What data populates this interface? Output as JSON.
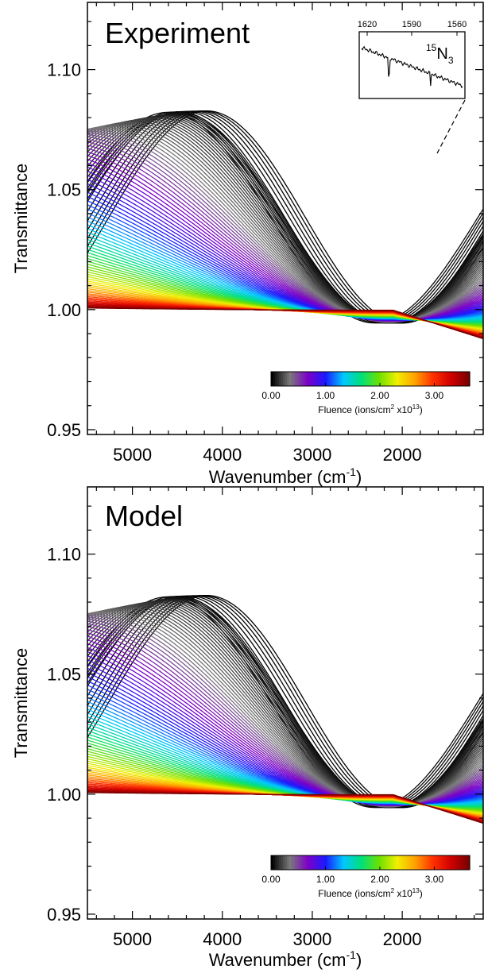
{
  "chart_data": [
    {
      "type": "line",
      "title": "Experiment",
      "xlabel": "Wavenumber (cm",
      "xlabel_sup": "-1",
      "xlabel_end": ")",
      "ylabel": "Transmittance",
      "xlim": [
        5500,
        1100
      ],
      "ylim": [
        0.948,
        1.128
      ],
      "xticks": [
        5000,
        4000,
        3000,
        2000
      ],
      "xtick_labels": [
        "5000",
        "4000",
        "3000",
        "2000"
      ],
      "yticks": [
        0.95,
        1.0,
        1.05,
        1.1
      ],
      "ytick_labels": [
        "0.95",
        "1.00",
        "1.05",
        "1.10"
      ],
      "colorbar": {
        "label": "Fluence (ions/cm",
        "label_sup1": "2",
        "label_mid": " x10",
        "label_sup2": "13",
        "label_end": ")",
        "range": [
          0.0,
          3.65
        ],
        "ticks": [
          0.0,
          1.0,
          2.0,
          3.0
        ],
        "tick_labels": [
          "0.00",
          "1.00",
          "2.00",
          "3.00"
        ],
        "colors": [
          "#000000",
          "#7a7a7a",
          "#7d00c8",
          "#1a1aff",
          "#00c8ff",
          "#00e07a",
          "#6ee000",
          "#f0f000",
          "#ffa000",
          "#ff3000",
          "#d00000",
          "#7a0000"
        ]
      },
      "inset": {
        "label_sup": "15",
        "label": "N",
        "label_sub": "3",
        "xticks": [
          "1620",
          "1590",
          "1560"
        ]
      },
      "series_description": {
        "n_curves": 96,
        "fluence_max": 3.65,
        "amplitude_max": 0.093,
        "period_at_zero_fluence_cm-1": 4360,
        "period_at_max_fluence_cm-1": 20000,
        "phase_anchor_cm-1": 2150,
        "baseline_start": 1.0,
        "baseline_end_slope_per_1000": -0.012
      }
    },
    {
      "type": "line",
      "title": "Model",
      "xlabel": "Wavenumber (cm",
      "xlabel_sup": "-1",
      "xlabel_end": ")",
      "ylabel": "Transmittance",
      "xlim": [
        5500,
        1100
      ],
      "ylim": [
        0.948,
        1.128
      ],
      "xticks": [
        5000,
        4000,
        3000,
        2000
      ],
      "xtick_labels": [
        "5000",
        "4000",
        "3000",
        "2000"
      ],
      "yticks": [
        0.95,
        1.0,
        1.05,
        1.1
      ],
      "ytick_labels": [
        "0.95",
        "1.00",
        "1.05",
        "1.10"
      ],
      "colorbar": {
        "label": "Fluence (ions/cm",
        "label_sup1": "2",
        "label_mid": " x10",
        "label_sup2": "13",
        "label_end": ")",
        "range": [
          0.0,
          3.65
        ],
        "ticks": [
          0.0,
          1.0,
          2.0,
          3.0
        ],
        "tick_labels": [
          "0.00",
          "1.00",
          "2.00",
          "3.00"
        ],
        "colors": [
          "#000000",
          "#7a7a7a",
          "#7d00c8",
          "#1a1aff",
          "#00c8ff",
          "#00e07a",
          "#6ee000",
          "#f0f000",
          "#ffa000",
          "#ff3000",
          "#d00000",
          "#7a0000"
        ]
      },
      "series_description": {
        "n_curves": 96,
        "fluence_max": 3.65,
        "amplitude_max": 0.093,
        "period_at_zero_fluence_cm-1": 4360,
        "period_at_max_fluence_cm-1": 20000,
        "phase_anchor_cm-1": 2150,
        "baseline_start": 1.0,
        "baseline_end_slope_per_1000": -0.012
      }
    }
  ]
}
